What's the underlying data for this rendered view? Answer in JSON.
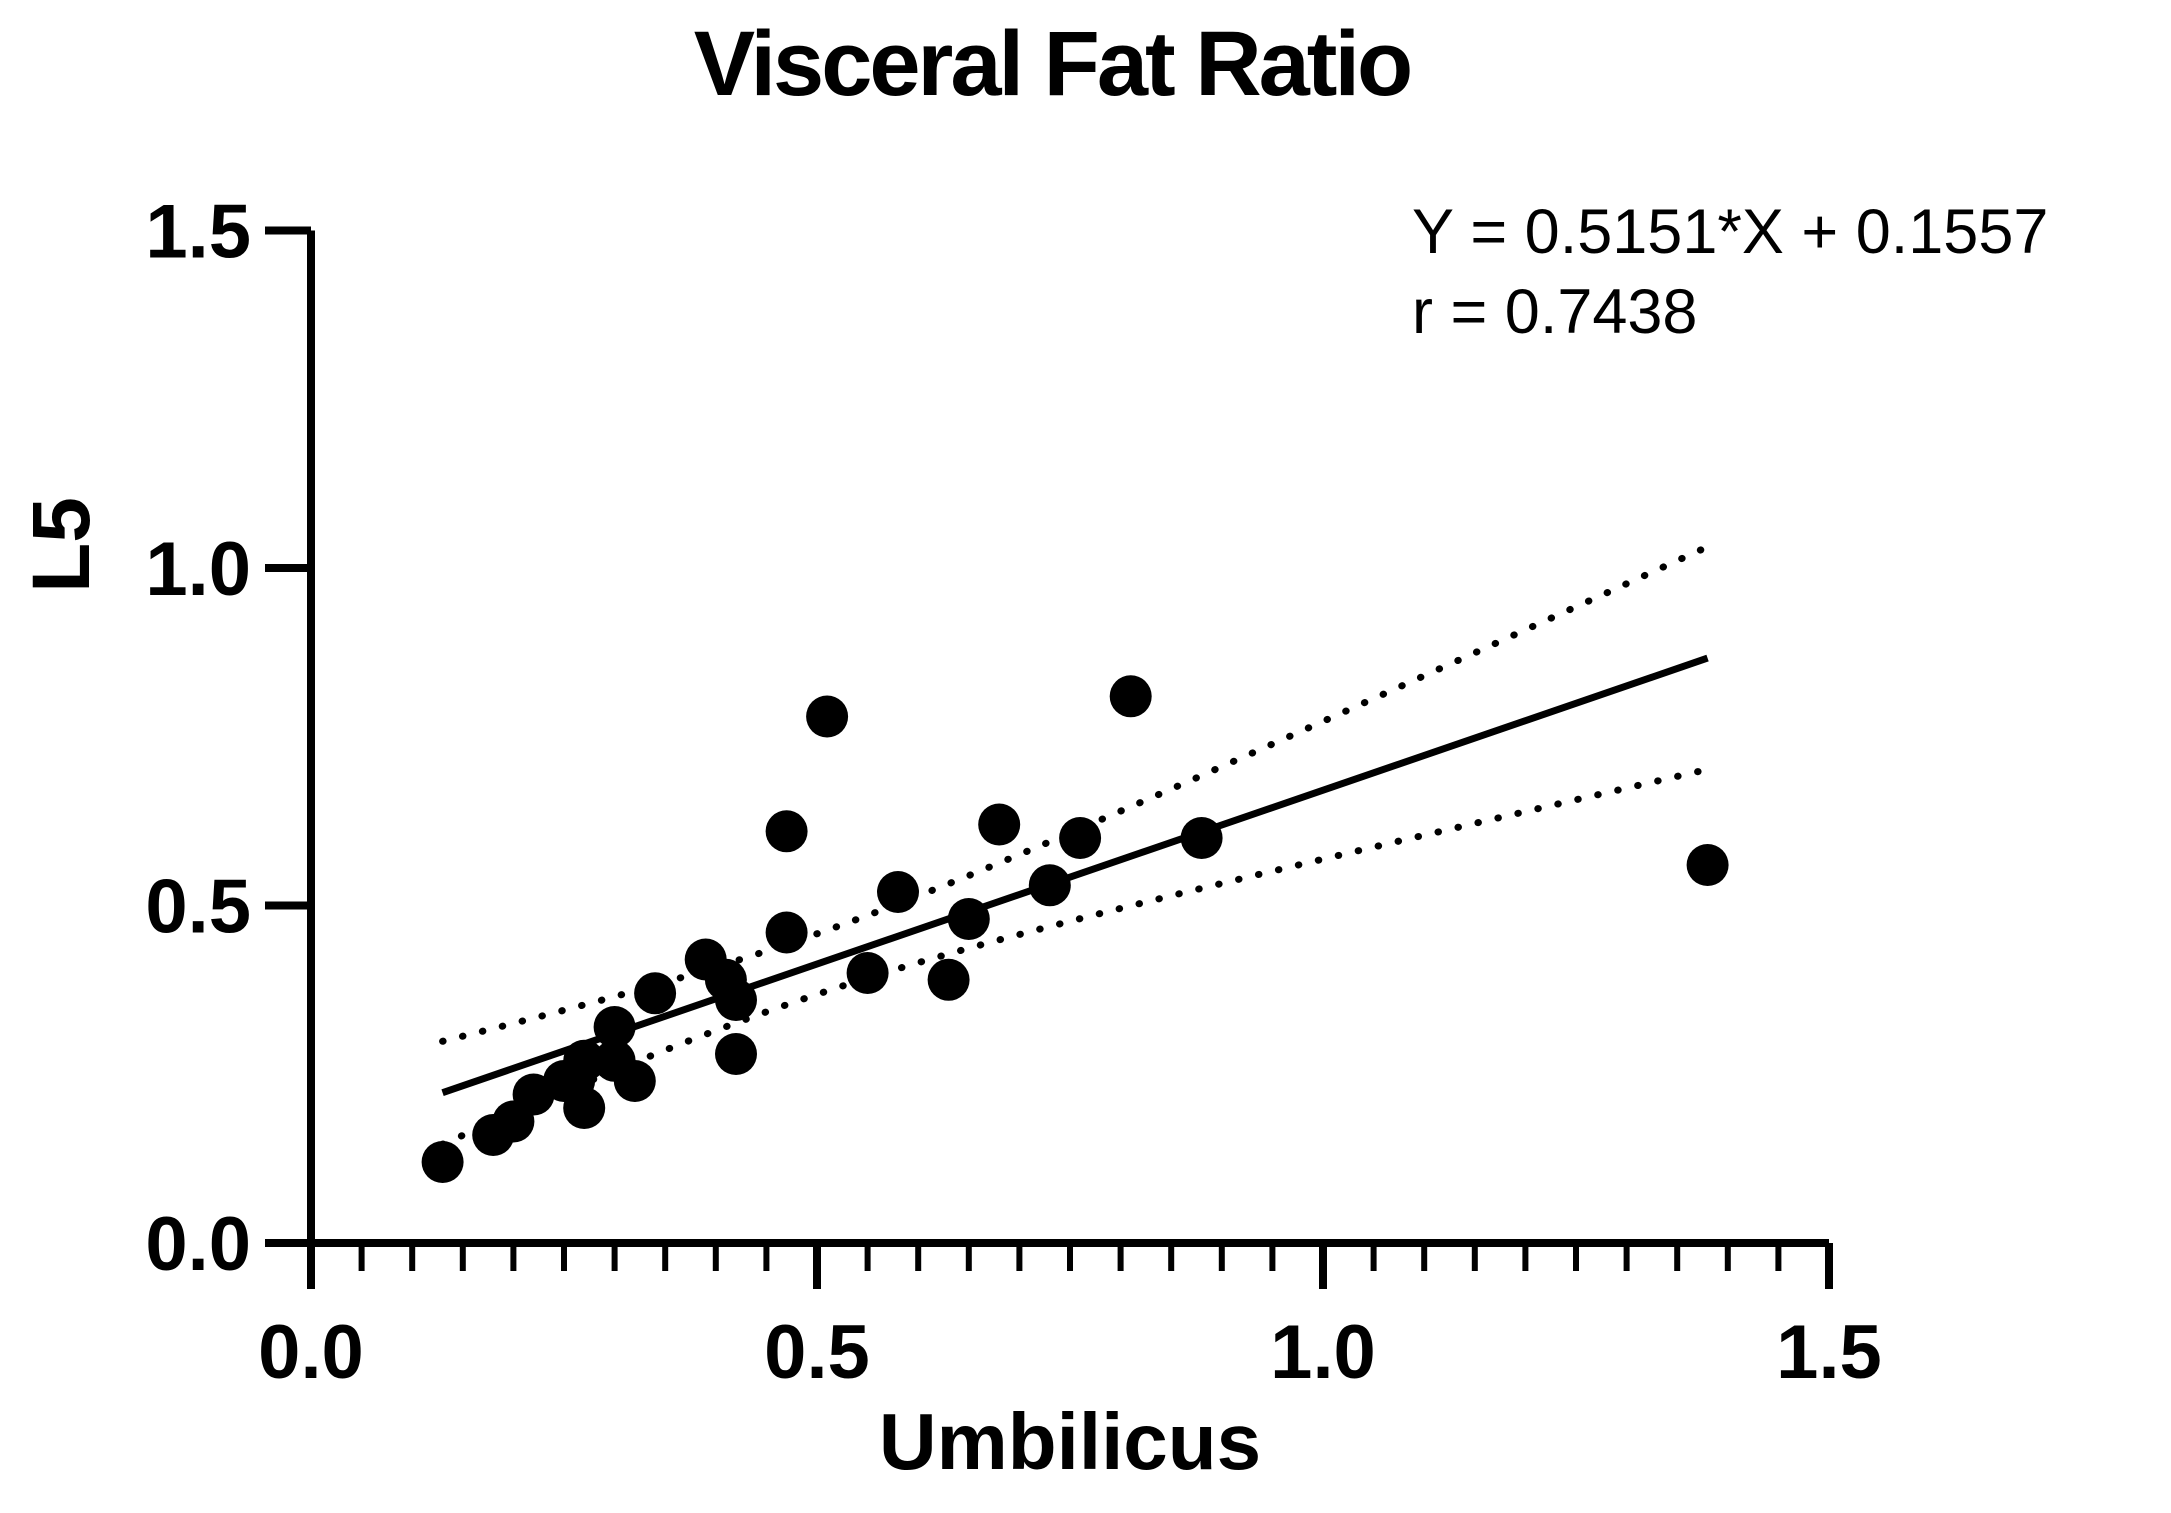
{
  "title": "Visceral Fat Ratio",
  "annotation": {
    "equation": "Y = 0.5151*X + 0.1557",
    "r": "r = 0.7438"
  },
  "x_axis": {
    "title": "Umbilicus"
  },
  "y_axis": {
    "title": "L5"
  },
  "colors": {
    "ink": "#000000",
    "background": "#ffffff"
  },
  "chart_data": {
    "type": "scatter",
    "title": "Visceral Fat Ratio",
    "xlabel": "Umbilicus",
    "ylabel": "L5",
    "xlim": [
      0,
      1.5
    ],
    "ylim": [
      0,
      1.5
    ],
    "grid": false,
    "x_ticks": {
      "values": [
        0,
        0.5,
        1.0,
        1.5
      ],
      "labels": [
        "0.0",
        "0.5",
        "1.0",
        "1.5"
      ]
    },
    "y_ticks": {
      "values": [
        0,
        0.5,
        1.0,
        1.5
      ],
      "labels": [
        "0.0",
        "0.5",
        "1.0",
        "1.5"
      ]
    },
    "x_minor_step": 0.05,
    "points": [
      [
        0.13,
        0.12
      ],
      [
        0.18,
        0.16
      ],
      [
        0.2,
        0.18
      ],
      [
        0.22,
        0.22
      ],
      [
        0.25,
        0.24
      ],
      [
        0.26,
        0.24
      ],
      [
        0.27,
        0.27
      ],
      [
        0.27,
        0.2
      ],
      [
        0.3,
        0.27
      ],
      [
        0.32,
        0.24
      ],
      [
        0.3,
        0.32
      ],
      [
        0.34,
        0.37
      ],
      [
        0.39,
        0.42
      ],
      [
        0.41,
        0.39
      ],
      [
        0.42,
        0.36
      ],
      [
        0.42,
        0.28
      ],
      [
        0.47,
        0.46
      ],
      [
        0.47,
        0.61
      ],
      [
        0.51,
        0.78
      ],
      [
        0.55,
        0.4
      ],
      [
        0.58,
        0.52
      ],
      [
        0.63,
        0.39
      ],
      [
        0.65,
        0.48
      ],
      [
        0.68,
        0.62
      ],
      [
        0.73,
        0.53
      ],
      [
        0.76,
        0.6
      ],
      [
        0.81,
        0.81
      ],
      [
        0.88,
        0.6
      ],
      [
        1.38,
        0.56
      ]
    ],
    "regression": {
      "slope": 0.5151,
      "intercept": 0.1557,
      "r": 0.7438,
      "x_start": 0.13,
      "x_end": 1.38
    },
    "confidence_band": {
      "x_mean": 0.48,
      "var_a": 0.002,
      "var_b": 0.0311,
      "x_start": 0.13,
      "x_end": 1.38
    }
  }
}
